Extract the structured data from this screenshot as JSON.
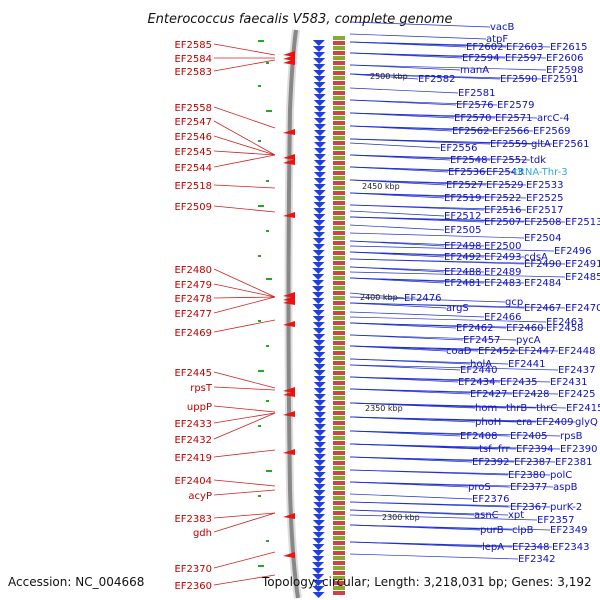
{
  "title": "Enterococcus faecalis V583, complete genome",
  "footer": {
    "accession": "Accession: NC_004668",
    "summary": "Topology: circular; Length: 3,218,031 bp; Genes: 3,192"
  },
  "colors": {
    "forward_labels": "#c00000",
    "reverse_labels": "#1010c0",
    "trna_label": "#33aadd",
    "backbone": "#888888"
  },
  "ticks": [
    "2500 kbp",
    "2450 kbp",
    "2400 kbp",
    "2350 kbp",
    "2300 kbp"
  ],
  "left_labels": [
    "EF2585",
    "EF2584",
    "EF2583",
    "EF2558",
    "EF2547",
    "EF2546",
    "EF2545",
    "EF2544",
    "EF2518",
    "EF2509",
    "EF2480",
    "EF2479",
    "EF2478",
    "EF2477",
    "EF2469",
    "EF2445",
    "rpsT",
    "uppP",
    "EF2433",
    "EF2432",
    "EF2419",
    "EF2404",
    "acyP",
    "EF2383",
    "gdh",
    "EF2370",
    "EF2360"
  ],
  "right_labels": [
    "vacB",
    "atpF",
    "EF2602",
    "EF2603",
    "EF2615",
    "EF2594",
    "EF2597",
    "EF2606",
    "EF2598",
    "EF2582",
    "manA",
    "EF2590",
    "EF2591",
    "EF2581",
    "EF2576",
    "EF2579",
    "EF2570",
    "EF2571",
    "arcC-4",
    "EF2562",
    "EF2566",
    "EF2569",
    "EF2559",
    "gltA",
    "EF2561",
    "EF2556",
    "EF2548",
    "EF2552",
    "tdk",
    "EF2536",
    "EF2543",
    "tRNA-Thr-3",
    "EF2527",
    "EF2529",
    "EF2533",
    "EF2519",
    "EF2522",
    "EF2525",
    "EF2516",
    "EF2517",
    "EF2512",
    "EF2507",
    "EF2508",
    "EF2513",
    "EF2505",
    "EF2504",
    "EF2498",
    "EF2500",
    "EF2496",
    "EF2492",
    "EF2493",
    "cdsA",
    "EF2490",
    "EF2491",
    "EF2488",
    "EF2489",
    "EF2485",
    "EF2481",
    "EF2483",
    "EF2484",
    "EF2476",
    "gcp",
    "argS",
    "EF2467",
    "EF2470",
    "EF2466",
    "EF2463",
    "EF2462",
    "EF2460",
    "EF2458",
    "EF2457",
    "pycA",
    "coaD",
    "EF2452",
    "EF2447",
    "EF2448",
    "holA",
    "EF2441",
    "EF2440",
    "EF2437",
    "EF2434",
    "EF2435",
    "EF2431",
    "EF2427",
    "EF2428",
    "EF2425",
    "hom",
    "thrB",
    "thrC",
    "EF2415",
    "phoH",
    "era",
    "EF2409",
    "glyQ",
    "EF2408",
    "EF2405",
    "rpsB",
    "tsf",
    "frr",
    "EF2394",
    "EF2390",
    "EF2392",
    "EF2387",
    "EF2381",
    "EF2380",
    "polC",
    "EF2377",
    "proS",
    "aspB",
    "EF2376",
    "EF2367",
    "purK-2",
    "asnC",
    "xpt",
    "EF2357",
    "purB",
    "clpB",
    "EF2349",
    "lepA",
    "EF2348",
    "EF2343",
    "EF2342"
  ]
}
